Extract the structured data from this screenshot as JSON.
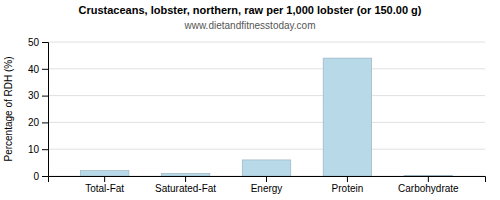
{
  "chart_data": {
    "type": "bar",
    "title": "Crustaceans, lobster, northern, raw per 1,000 lobster (or 150.00 g)",
    "subtitle": "www.dietandfitnesstoday.com",
    "categories": [
      "Total-Fat",
      "Saturated-Fat",
      "Energy",
      "Protein",
      "Carbohydrate"
    ],
    "values": [
      2.0,
      1.0,
      6.0,
      44.0,
      0.2
    ],
    "color": "#b8d9e8",
    "ylabel": "Percentage of RDH (%)",
    "ylim": [
      0,
      50
    ],
    "yticks": [
      0,
      10,
      20,
      30,
      40,
      50
    ],
    "grid": true
  }
}
